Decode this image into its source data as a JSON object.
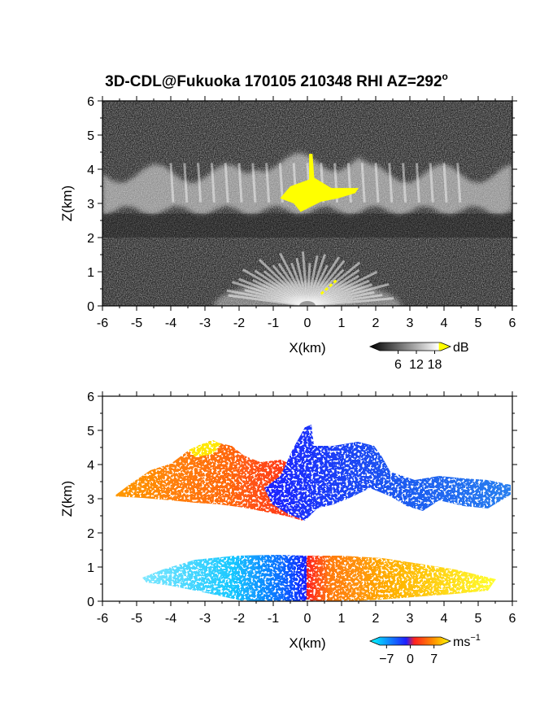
{
  "figure": {
    "title": "3D-CDL@Fukuoka 170105 210348 RHI AZ=292",
    "title_superscript": "o"
  },
  "chart_data": [
    {
      "type": "heatmap",
      "name": "power",
      "xlabel": "X(km)",
      "ylabel": "Z(km)",
      "xlim": [
        -6,
        6
      ],
      "ylim": [
        0,
        6
      ],
      "xticks": [
        -6,
        -5,
        -4,
        -3,
        -2,
        -1,
        0,
        1,
        2,
        3,
        4,
        5,
        6
      ],
      "yticks": [
        0,
        1,
        2,
        3,
        4,
        5,
        6
      ],
      "colorbar": {
        "unit": "dB",
        "ticks": [
          6,
          12,
          18
        ],
        "colors": [
          "#000000",
          "#ffffff",
          "#ffff00"
        ],
        "range": [
          0,
          20
        ]
      },
      "features": [
        {
          "kind": "cloud_layer",
          "x": [
            -6,
            6
          ],
          "z": [
            2.6,
            4.3
          ],
          "value_db": 14
        },
        {
          "kind": "strong_echo",
          "x": [
            -0.8,
            1.5
          ],
          "z": [
            3.0,
            4.2
          ],
          "value_db": 19
        },
        {
          "kind": "near_surface_fan",
          "x": [
            -3,
            3
          ],
          "z": [
            0,
            1.3
          ],
          "value_db": 13
        }
      ]
    },
    {
      "type": "heatmap",
      "name": "velocity",
      "xlabel": "X(km)",
      "ylabel": "Z(km)",
      "xlim": [
        -6,
        6
      ],
      "ylim": [
        0,
        6
      ],
      "xticks": [
        -6,
        -5,
        -4,
        -3,
        -2,
        -1,
        0,
        1,
        2,
        3,
        4,
        5,
        6
      ],
      "yticks": [
        0,
        1,
        2,
        3,
        4,
        5,
        6
      ],
      "colorbar": {
        "unit": "ms",
        "unit_superscript": "−1",
        "ticks": [
          "−7",
          "0",
          "7"
        ],
        "tick_values": [
          -7,
          0,
          7
        ],
        "colors": [
          "#00ffff",
          "#1e1eff",
          "#ff2020",
          "#ff8c00",
          "#ffff00"
        ],
        "range": [
          -9,
          9
        ]
      },
      "features": [
        {
          "kind": "upper_layer_left",
          "x": [
            -5.7,
            -0.3
          ],
          "z": [
            3.0,
            4.6
          ],
          "value_ms": 5
        },
        {
          "kind": "upper_layer_right",
          "x": [
            -0.3,
            6.0
          ],
          "z": [
            2.7,
            4.5
          ],
          "value_ms": -5
        },
        {
          "kind": "low_layer_left",
          "x": [
            -4.7,
            0
          ],
          "z": [
            0,
            1.2
          ],
          "value_ms": -6
        },
        {
          "kind": "low_layer_right",
          "x": [
            0,
            5.5
          ],
          "z": [
            0,
            1.2
          ],
          "value_ms": 6
        }
      ]
    }
  ]
}
